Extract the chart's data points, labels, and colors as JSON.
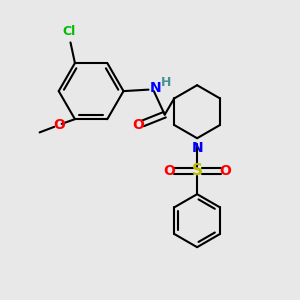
{
  "background_color": "#e8e8e8",
  "bond_color": "#000000",
  "bond_width": 1.5,
  "cl_color": "#00bb00",
  "n_color": "#0000ff",
  "o_color": "#ff0000",
  "s_color": "#bbbb00",
  "h_color": "#4a9090",
  "figsize": [
    3.0,
    3.0
  ],
  "dpi": 100,
  "xlim": [
    0,
    10
  ],
  "ylim": [
    0,
    10
  ]
}
